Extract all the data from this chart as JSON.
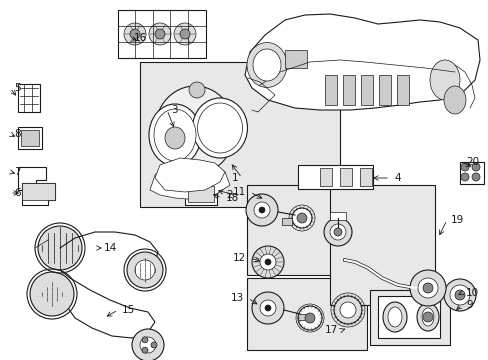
{
  "bg_color": "#ffffff",
  "lc": "#000000",
  "box_fill": "#e0e0e0",
  "white": "#ffffff",
  "figsize": [
    4.89,
    3.6
  ],
  "dpi": 100
}
